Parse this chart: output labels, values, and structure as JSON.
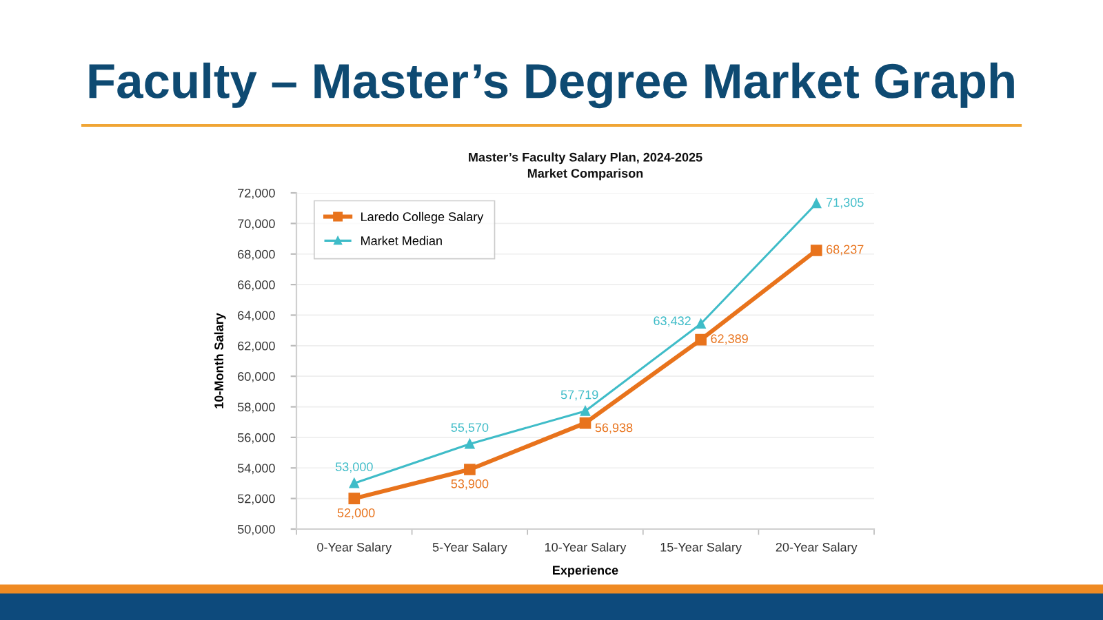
{
  "chart_data": {
    "type": "line",
    "title": "Faculty – Master’s Degree Market Graph",
    "subtitle": "Master’s Faculty Salary Plan, 2024-2025\nMarket Comparison",
    "xlabel": "Experience",
    "ylabel": "10-Month Salary",
    "categories": [
      "0-Year Salary",
      "5-Year Salary",
      "10-Year Salary",
      "15-Year Salary",
      "20-Year Salary"
    ],
    "series": [
      {
        "name": "Laredo College Salary",
        "color": "#e8731c",
        "marker": "square",
        "values": [
          52000,
          53900,
          56938,
          62389,
          68237
        ],
        "value_labels": [
          "52,000",
          "53,900",
          "56,938",
          "62,389",
          "68,237"
        ]
      },
      {
        "name": "Market Median",
        "color": "#3fbcc8",
        "marker": "triangle",
        "values": [
          53000,
          55570,
          57719,
          63432,
          71305
        ],
        "value_labels": [
          "53,000",
          "55,570",
          "57,719",
          "63,432",
          "71,305"
        ]
      }
    ],
    "ylim": [
      50000,
      72000
    ],
    "yticks": [
      {
        "value": 50000,
        "label": "50,000"
      },
      {
        "value": 52000,
        "label": "52,000"
      },
      {
        "value": 54000,
        "label": "54,000"
      },
      {
        "value": 56000,
        "label": "56,000"
      },
      {
        "value": 58000,
        "label": "58,000"
      },
      {
        "value": 60000,
        "label": "60,000"
      },
      {
        "value": 62000,
        "label": "62,000"
      },
      {
        "value": 64000,
        "label": "64,000"
      },
      {
        "value": 66000,
        "label": "66,000"
      },
      {
        "value": 68000,
        "label": "68,000"
      },
      {
        "value": 70000,
        "label": "70,000"
      },
      {
        "value": 72000,
        "label": "72,000"
      }
    ],
    "grid": "y",
    "legend": "top left"
  }
}
